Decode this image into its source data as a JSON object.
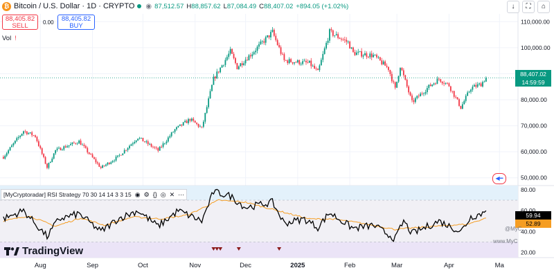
{
  "header": {
    "symbol": "Bitcoin / U.S. Dollar · 1D · CRYPTO",
    "open": "87,512.57",
    "high_label": "H",
    "high": "88,857.62",
    "low_label": "L",
    "low": "87,084.49",
    "close_label": "C",
    "close": "88,407.02",
    "change": "+894.05 (+1.02%)"
  },
  "trade": {
    "sell_price": "88,405.82",
    "sell_label": "SELL",
    "spread": "0.00",
    "buy_price": "88,405.82",
    "buy_label": "BUY"
  },
  "volume_label": "Vol",
  "rsi_indicator": {
    "label": "[MyCryptoradar] RSI Strategy 70 30 14 14 3 3 15",
    "value": "59.94",
    "signal": "52.89",
    "watermark_1": "@MyC",
    "watermark_2": "www.MyC"
  },
  "price_badge": {
    "price": "88,407.02",
    "countdown": "14:59:59"
  },
  "logo": "TradingView",
  "colors": {
    "up": "#089981",
    "down": "#f23645",
    "rsi": "#000000",
    "signal": "#f59d22"
  },
  "chart_data": [
    {
      "type": "candlestick",
      "title": "Bitcoin / U.S. Dollar · 1D · CRYPTO",
      "y_ticks": [
        50000,
        60000,
        70000,
        80000,
        90000,
        100000,
        110000
      ],
      "y_tick_labels": [
        "50,000.00",
        "60,000.00",
        "70,000.00",
        "80,000.00",
        "90,000.00",
        "100,000.00",
        "110,000.00"
      ],
      "ylim": [
        47000,
        113000
      ],
      "x_tick_labels": [
        "Aug",
        "Sep",
        "Oct",
        "Nov",
        "Dec",
        "2025",
        "Feb",
        "Mar",
        "Apr",
        "Ma"
      ],
      "x_ticks": [
        "2024-08-01",
        "2024-09-01",
        "2024-10-01",
        "2024-11-01",
        "2024-12-01",
        "2025-01-01",
        "2025-02-01",
        "2025-03-01",
        "2025-04-01",
        "2025-05-01"
      ],
      "xlim": [
        "2024-07-08",
        "2025-05-12"
      ],
      "last_price": 88407.02,
      "close_trend": [
        [
          "2024-07-10",
          58000
        ],
        [
          "2024-07-22",
          68000
        ],
        [
          "2024-07-29",
          66000
        ],
        [
          "2024-08-05",
          54000
        ],
        [
          "2024-08-10",
          60500
        ],
        [
          "2024-08-24",
          64000
        ],
        [
          "2024-09-06",
          53800
        ],
        [
          "2024-09-16",
          58000
        ],
        [
          "2024-09-28",
          65500
        ],
        [
          "2024-10-10",
          60500
        ],
        [
          "2024-10-20",
          68500
        ],
        [
          "2024-10-29",
          72500
        ],
        [
          "2024-11-05",
          69000
        ],
        [
          "2024-11-12",
          88000
        ],
        [
          "2024-11-22",
          98500
        ],
        [
          "2024-11-26",
          92500
        ],
        [
          "2024-12-05",
          98000
        ],
        [
          "2024-12-17",
          106000
        ],
        [
          "2024-12-24",
          95000
        ],
        [
          "2025-01-01",
          94500
        ],
        [
          "2025-01-08",
          94000
        ],
        [
          "2025-01-13",
          90500
        ],
        [
          "2025-01-20",
          106000
        ],
        [
          "2025-01-31",
          102000
        ],
        [
          "2025-02-03",
          98000
        ],
        [
          "2025-02-15",
          97000
        ],
        [
          "2025-02-24",
          92000
        ],
        [
          "2025-02-28",
          84000
        ],
        [
          "2025-03-03",
          93000
        ],
        [
          "2025-03-10",
          79000
        ],
        [
          "2025-03-20",
          85000
        ],
        [
          "2025-03-26",
          88000
        ],
        [
          "2025-04-01",
          85500
        ],
        [
          "2025-04-08",
          77000
        ],
        [
          "2025-04-14",
          84500
        ],
        [
          "2025-04-20",
          86000
        ],
        [
          "2025-04-23",
          88407
        ]
      ]
    },
    {
      "type": "line",
      "title": "[MyCryptoradar] RSI Strategy 70 30 14 14 3 3 15",
      "y_ticks": [
        20,
        40,
        60,
        80
      ],
      "y_tick_labels": [
        "20.00",
        "40.00",
        "60.00",
        "80.00"
      ],
      "ylim": [
        15,
        84
      ],
      "overbought": 70,
      "oversold": 30,
      "series": [
        {
          "name": "RSI",
          "last": 59.94,
          "points": [
            [
              "2024-07-10",
              52
            ],
            [
              "2024-07-22",
              60
            ],
            [
              "2024-08-05",
              35
            ],
            [
              "2024-08-12",
              52
            ],
            [
              "2024-08-24",
              57
            ],
            [
              "2024-09-06",
              40
            ],
            [
              "2024-09-16",
              52
            ],
            [
              "2024-09-28",
              60
            ],
            [
              "2024-10-10",
              45
            ],
            [
              "2024-10-22",
              60
            ],
            [
              "2024-11-05",
              50
            ],
            [
              "2024-11-12",
              78
            ],
            [
              "2024-11-22",
              74
            ],
            [
              "2024-12-01",
              63
            ],
            [
              "2024-12-17",
              68
            ],
            [
              "2024-12-24",
              48
            ],
            [
              "2025-01-05",
              52
            ],
            [
              "2025-01-13",
              44
            ],
            [
              "2025-01-20",
              58
            ],
            [
              "2025-02-03",
              43
            ],
            [
              "2025-02-15",
              46
            ],
            [
              "2025-02-28",
              33
            ],
            [
              "2025-03-05",
              50
            ],
            [
              "2025-03-10",
              38
            ],
            [
              "2025-03-26",
              50
            ],
            [
              "2025-04-08",
              40
            ],
            [
              "2025-04-14",
              54
            ],
            [
              "2025-04-20",
              57
            ],
            [
              "2025-04-23",
              59.94
            ]
          ]
        },
        {
          "name": "Signal",
          "last": 52.89,
          "points": [
            [
              "2024-07-10",
              50
            ],
            [
              "2024-07-25",
              55
            ],
            [
              "2024-08-10",
              45
            ],
            [
              "2024-08-25",
              53
            ],
            [
              "2024-09-08",
              46
            ],
            [
              "2024-09-25",
              54
            ],
            [
              "2024-10-12",
              52
            ],
            [
              "2024-10-28",
              56
            ],
            [
              "2024-11-15",
              70
            ],
            [
              "2024-12-01",
              68
            ],
            [
              "2024-12-20",
              60
            ],
            [
              "2025-01-08",
              52
            ],
            [
              "2025-01-22",
              52
            ],
            [
              "2025-02-08",
              48
            ],
            [
              "2025-02-28",
              42
            ],
            [
              "2025-03-15",
              44
            ],
            [
              "2025-04-01",
              46
            ],
            [
              "2025-04-12",
              47
            ],
            [
              "2025-04-23",
              52.89
            ]
          ]
        }
      ]
    }
  ]
}
